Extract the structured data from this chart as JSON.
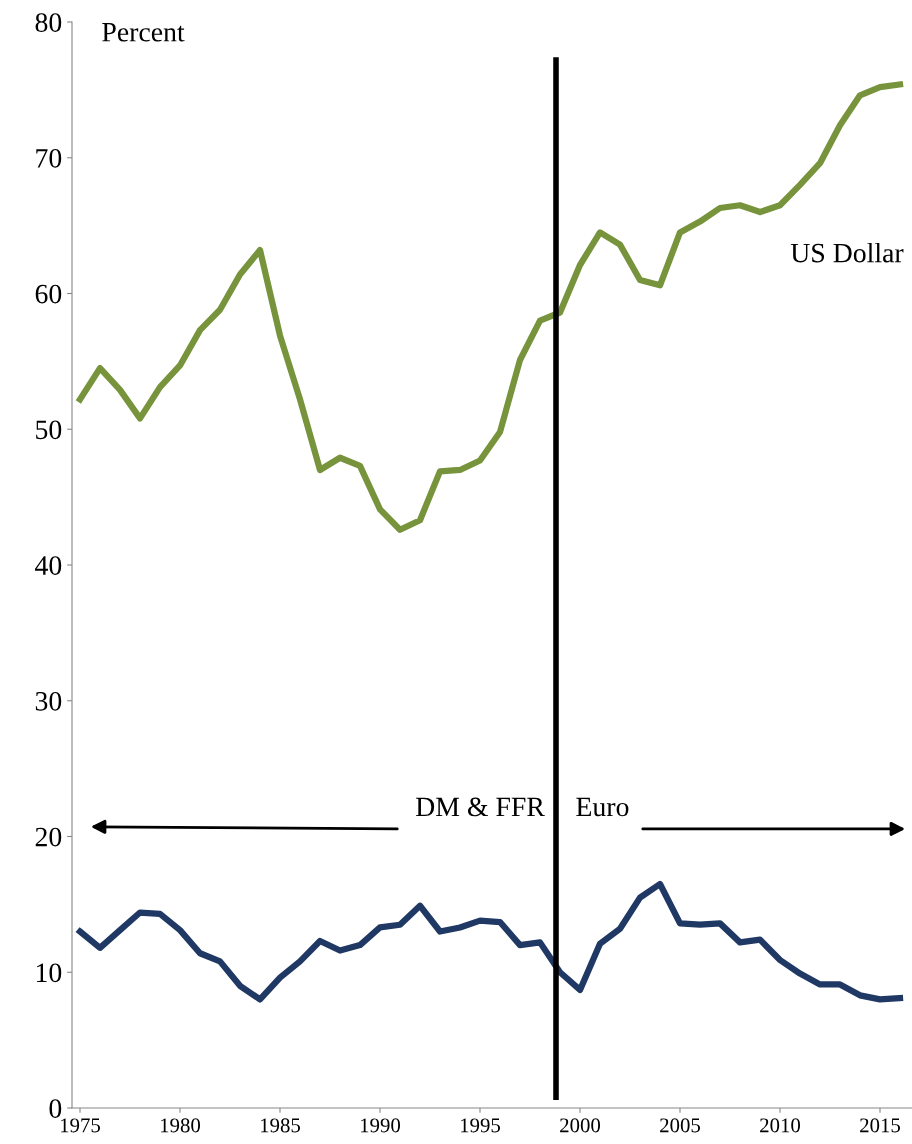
{
  "chart_data": {
    "type": "line",
    "ylabel": "Percent",
    "x": [
      1975,
      1976,
      1977,
      1978,
      1979,
      1980,
      1981,
      1982,
      1983,
      1984,
      1985,
      1986,
      1987,
      1988,
      1989,
      1990,
      1991,
      1992,
      1993,
      1994,
      1995,
      1996,
      1997,
      1998,
      1999,
      2000,
      2001,
      2002,
      2003,
      2004,
      2005,
      2006,
      2007,
      2008,
      2009,
      2010,
      2011,
      2012,
      2013,
      2014,
      2015,
      2016
    ],
    "series": [
      {
        "name": "US Dollar",
        "color": "#77933c",
        "values": [
          52.2,
          54.5,
          52.9,
          50.8,
          53.1,
          54.7,
          57.3,
          58.8,
          61.4,
          63.2,
          56.9,
          52.2,
          47.0,
          47.9,
          47.3,
          44.1,
          42.6,
          43.3,
          46.9,
          47.0,
          47.7,
          49.8,
          55.1,
          58.0,
          58.6,
          62.1,
          64.5,
          63.6,
          61.0,
          60.6,
          64.5,
          65.3,
          66.3,
          66.5,
          66.0,
          66.5,
          68.0,
          69.6,
          72.4,
          74.6,
          75.2,
          75.4
        ]
      },
      {
        "color": "#1f3864",
        "values": [
          13.0,
          11.8,
          13.1,
          14.4,
          14.3,
          13.1,
          11.4,
          10.8,
          9.0,
          8.0,
          9.6,
          10.8,
          12.3,
          11.6,
          12.0,
          13.3,
          13.5,
          14.9,
          13.0,
          13.3,
          13.8,
          13.7,
          12.0,
          12.2,
          10.0,
          8.7,
          12.1,
          13.2,
          15.5,
          16.5,
          13.6,
          13.5,
          13.6,
          12.2,
          12.4,
          10.9,
          9.9,
          9.1,
          9.1,
          8.3,
          8.0,
          8.1
        ]
      }
    ],
    "xlim": [
      1974.6,
      2016.6
    ],
    "xticks": [
      1975,
      1980,
      1985,
      1990,
      1995,
      2000,
      2005,
      2010,
      2015
    ],
    "ylim": [
      0,
      80
    ],
    "yticks": [
      0,
      10,
      20,
      30,
      40,
      50,
      60,
      70,
      80
    ],
    "ref_lines": [
      {
        "axis": "x",
        "value": 1998.8,
        "color": "#000000"
      }
    ],
    "annotations": [
      "DM & FFR",
      "Euro"
    ],
    "grid": false,
    "legend": false,
    "marker": "none",
    "line_style": "solid"
  }
}
